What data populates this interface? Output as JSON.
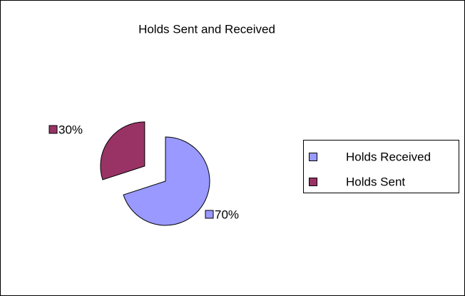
{
  "chart_data": {
    "type": "pie",
    "title": "Holds Sent and Received",
    "categories": [
      "Holds Received",
      "Holds Sent"
    ],
    "values": [
      70,
      30
    ],
    "value_labels": [
      "70%",
      "30%"
    ],
    "colors": [
      "#9999ff",
      "#993366"
    ],
    "exploded": [
      false,
      true
    ],
    "legend": "right"
  }
}
